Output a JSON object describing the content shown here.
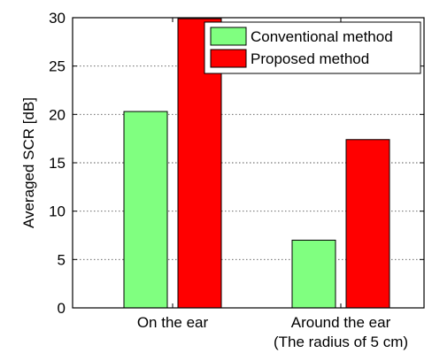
{
  "chart_data": {
    "type": "bar",
    "title": "",
    "xlabel": "",
    "ylabel": "Averaged SCR [dB]",
    "ylim": [
      0,
      30
    ],
    "yticks": [
      0,
      5,
      10,
      15,
      20,
      25,
      30
    ],
    "grid": true,
    "legend_position": "top-right",
    "categories": [
      [
        "On the ear"
      ],
      [
        "Around the ear",
        "(The radius of 5 cm)"
      ]
    ],
    "series": [
      {
        "name": "Conventional method",
        "color": "#80ff80",
        "values": [
          20.3,
          7.0
        ]
      },
      {
        "name": "Proposed method",
        "color": "#ff0000",
        "values": [
          29.9,
          17.4
        ]
      }
    ]
  }
}
